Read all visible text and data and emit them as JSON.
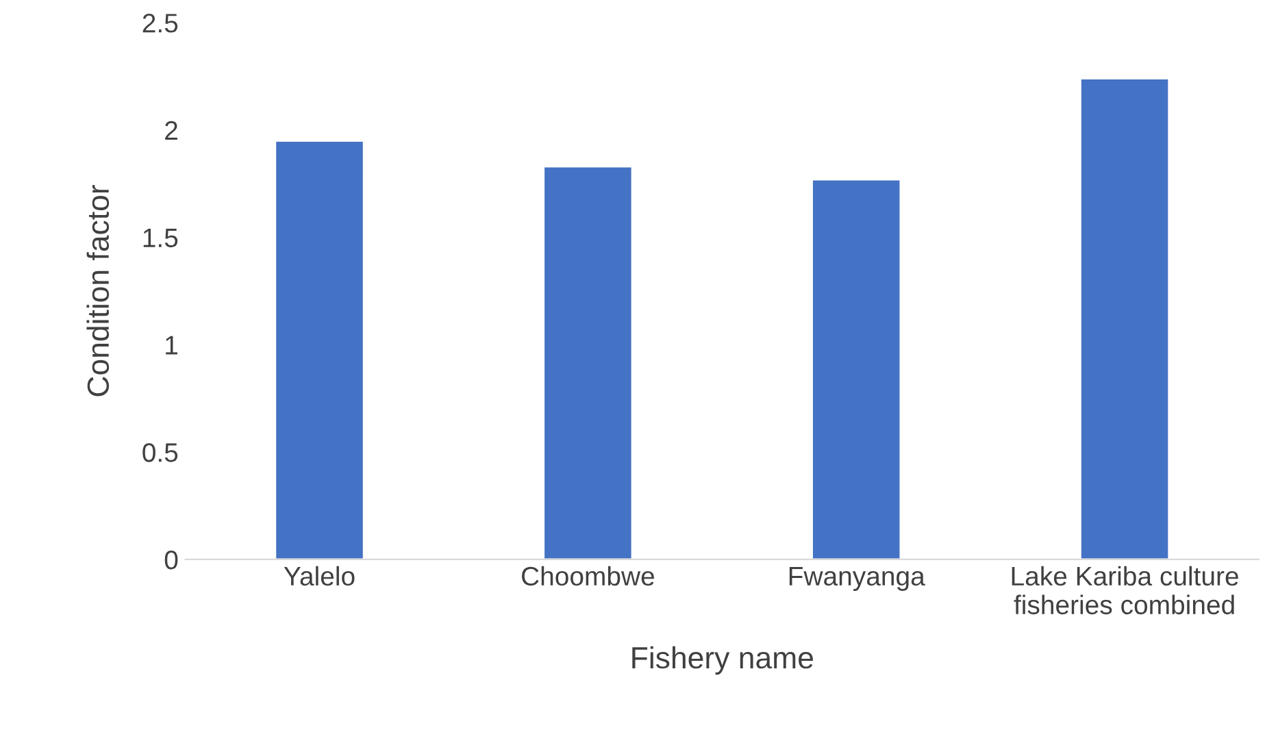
{
  "chart_data": {
    "type": "bar",
    "xlabel": "Fishery name",
    "ylabel": "Condition factor",
    "categories": [
      "Yalelo",
      "Choombwe",
      "Fwanyanga",
      "Lake Kariba culture\nfisheries combined"
    ],
    "values": [
      1.95,
      1.83,
      1.77,
      2.24
    ],
    "color": "#4472c4",
    "ylim": [
      0,
      2.5
    ],
    "yticks": [
      0,
      0.5,
      1,
      1.5,
      2,
      2.5
    ],
    "grid": false,
    "legend": false
  }
}
